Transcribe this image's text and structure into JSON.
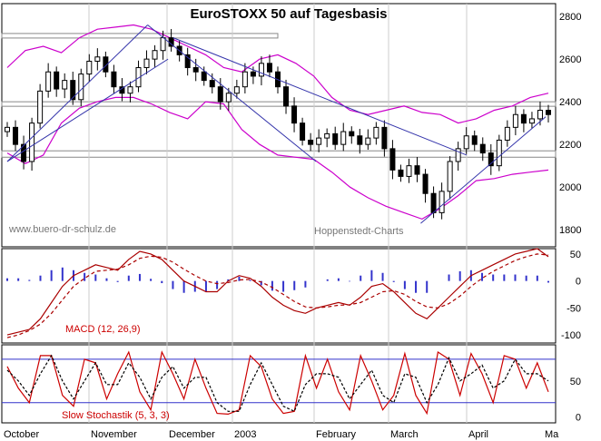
{
  "chart_data": {
    "type": "candlestick",
    "title": "EuroSTOXX 50 auf Tagesbasis",
    "watermarks": {
      "left": "www.buero-dr-schulz.de",
      "right": "Hoppenstedt-Charts"
    },
    "x_labels": [
      "October",
      "November",
      "December",
      "2003",
      "February",
      "March",
      "April",
      "Ma"
    ],
    "colors": {
      "price": "#000000",
      "band": "#cc00cc",
      "trend": "#3333aa",
      "macd": "#aa0000",
      "hist": "#3333cc",
      "stoch": "#cc0000",
      "stoch_lines": "#3333cc"
    },
    "price_panel": {
      "ylim": [
        1720,
        2860
      ],
      "y_ticks": [
        1800,
        2000,
        2200,
        2400,
        2600,
        2800
      ],
      "close": [
        2280,
        2200,
        2120,
        2300,
        2450,
        2540,
        2460,
        2500,
        2410,
        2530,
        2590,
        2610,
        2540,
        2470,
        2440,
        2470,
        2560,
        2600,
        2640,
        2700,
        2660,
        2620,
        2560,
        2540,
        2500,
        2470,
        2400,
        2440,
        2470,
        2540,
        2520,
        2580,
        2540,
        2470,
        2380,
        2300,
        2220,
        2200,
        2230,
        2250,
        2200,
        2260,
        2240,
        2200,
        2230,
        2280,
        2180,
        2080,
        2050,
        2100,
        2060,
        1970,
        1880,
        1980,
        2120,
        2180,
        2240,
        2200,
        2160,
        2100,
        2220,
        2280,
        2340,
        2300,
        2320,
        2360,
        2340
      ],
      "upper_band": [
        2560,
        2640,
        2660,
        2630,
        2700,
        2740,
        2750,
        2760,
        2740,
        2700,
        2660,
        2620,
        2560,
        2540,
        2600,
        2620,
        2580,
        2520,
        2420,
        2360,
        2340,
        2360,
        2380,
        2350,
        2340,
        2300,
        2320,
        2360,
        2380,
        2420,
        2440
      ],
      "lower_band": [
        2160,
        2110,
        2150,
        2300,
        2370,
        2400,
        2420,
        2420,
        2390,
        2350,
        2320,
        2400,
        2390,
        2270,
        2200,
        2150,
        2140,
        2130,
        2070,
        2000,
        1950,
        1910,
        1880,
        1850,
        1900,
        1960,
        2030,
        2040,
        2060,
        2070,
        2080
      ],
      "trendlines": [
        [
          [
            "Oct 1",
            2120
          ],
          [
            "Nov 25",
            2760
          ]
        ],
        [
          [
            "Oct 1",
            2120
          ],
          [
            "Dec 3",
            2600
          ]
        ],
        [
          [
            "Nov 25",
            2760
          ],
          [
            "Jan 30",
            2120
          ]
        ],
        [
          [
            "Dec 5",
            2700
          ],
          [
            "Mar 30",
            2150
          ]
        ],
        [
          [
            "Mar 12",
            1830
          ],
          [
            "Apr 30",
            2330
          ]
        ]
      ],
      "boxes": [
        [
          2700,
          2720
        ],
        [
          2380,
          2400
        ],
        [
          2140,
          2170
        ]
      ]
    },
    "macd_panel": {
      "label": "MACD (12, 26,9)",
      "ylim": [
        -115,
        60
      ],
      "y_ticks": [
        50,
        0,
        -50,
        -100
      ],
      "macd": [
        -100,
        -95,
        -90,
        -70,
        -40,
        -10,
        10,
        20,
        30,
        25,
        20,
        40,
        55,
        50,
        40,
        20,
        0,
        -10,
        -20,
        -20,
        0,
        10,
        5,
        -10,
        -30,
        -45,
        -55,
        -60,
        -50,
        -45,
        -40,
        -45,
        -30,
        -10,
        -5,
        -20,
        -40,
        -60,
        -70,
        -50,
        -30,
        -10,
        10,
        20,
        30,
        40,
        50,
        55,
        60,
        45
      ],
      "signal": [
        -105,
        -100,
        -92,
        -80,
        -60,
        -35,
        -10,
        5,
        18,
        20,
        22,
        30,
        42,
        46,
        44,
        35,
        22,
        10,
        0,
        -5,
        -3,
        2,
        3,
        -2,
        -12,
        -25,
        -38,
        -48,
        -50,
        -48,
        -45,
        -44,
        -40,
        -30,
        -20,
        -18,
        -25,
        -38,
        -48,
        -50,
        -42,
        -28,
        -10,
        5,
        18,
        28,
        38,
        45,
        50,
        48
      ],
      "histogram": [
        5,
        5,
        2,
        10,
        20,
        25,
        20,
        15,
        12,
        5,
        -2,
        10,
        13,
        4,
        -4,
        -15,
        -22,
        -20,
        -20,
        -15,
        3,
        8,
        2,
        -8,
        -18,
        -20,
        -17,
        -12,
        0,
        3,
        5,
        -1,
        10,
        20,
        15,
        -2,
        -15,
        -22,
        -22,
        0,
        12,
        18,
        20,
        15,
        12,
        12,
        12,
        10,
        10,
        -3
      ]
    },
    "stoch_panel": {
      "label": "Slow Stochastik (5, 3, 3)",
      "ylim": [
        -8,
        100
      ],
      "y_ticks": [
        50,
        0
      ],
      "guide_levels": [
        80,
        20
      ],
      "k": [
        70,
        40,
        20,
        85,
        85,
        30,
        15,
        80,
        75,
        25,
        60,
        90,
        35,
        10,
        90,
        60,
        25,
        80,
        40,
        5,
        4,
        10,
        85,
        70,
        25,
        5,
        8,
        85,
        40,
        80,
        35,
        10,
        85,
        50,
        10,
        30,
        88,
        30,
        5,
        90,
        80,
        30,
        88,
        60,
        20,
        85,
        80,
        40,
        75,
        35
      ],
      "d": [
        65,
        50,
        30,
        60,
        85,
        50,
        25,
        50,
        75,
        45,
        45,
        75,
        55,
        25,
        55,
        70,
        40,
        55,
        55,
        20,
        8,
        8,
        45,
        75,
        45,
        15,
        8,
        45,
        60,
        60,
        55,
        25,
        45,
        65,
        30,
        20,
        60,
        55,
        20,
        45,
        82,
        50,
        60,
        72,
        40,
        50,
        80,
        60,
        60,
        50
      ]
    }
  }
}
